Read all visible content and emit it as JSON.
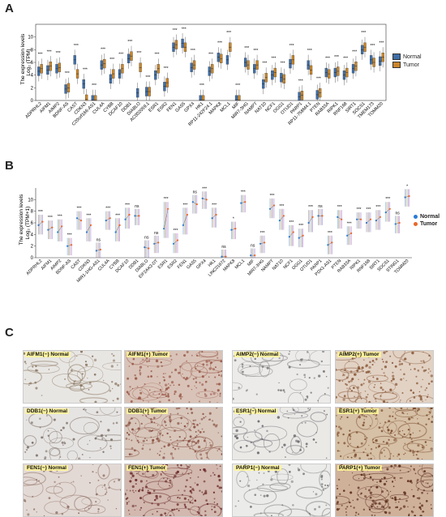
{
  "panels": {
    "a_label": "A",
    "b_label": "B",
    "c_label": "C"
  },
  "panel_a": {
    "ylabel_line1": "The expression levels",
    "ylabel_line2": "Log₂ (TPM)",
    "legend": [
      {
        "name": "Normal",
        "color": "#3f6fa8"
      },
      {
        "name": "Tumor",
        "color": "#c9862a"
      }
    ]
  },
  "panel_b": {
    "ylabel_line1": "The expression levels",
    "ylabel_line2": "Log₂ (TPM+1)",
    "legend": [
      {
        "name": "Normal",
        "color": "#2a7bd4"
      },
      {
        "name": "Tumor",
        "color": "#e8682a"
      }
    ]
  },
  "chart_data": [
    {
      "type": "box",
      "panel": "A",
      "ylim": [
        0,
        12
      ],
      "yticks": [
        0,
        2,
        4,
        6,
        8,
        10
      ],
      "categories": [
        "ADPRHL2",
        "AIFM1",
        "AIMP2",
        "BDNF-AS",
        "CAST",
        "CDKN3",
        "C20orf166-AS1",
        "CUL4A",
        "CYBB",
        "DCAF10",
        "DDB1",
        "DIABLO",
        "AC002059.1",
        "ESR1",
        "ESR2",
        "FEN1",
        "GAS5",
        "GPX4",
        "HK1",
        "RP11-242F24.1",
        "MAPK8",
        "MCL1",
        "MIF",
        "MIR7-3HG",
        "NAMPT",
        "NAT10",
        "NCF1",
        "OGG1",
        "OTUD1",
        "PARP1",
        "RP11-758M4.1",
        "PTEN",
        "RAB33A",
        "RIPK1",
        "RNF168",
        "SIRT1",
        "SOCS1",
        "TMEM173",
        "TOMM20"
      ],
      "series": [
        {
          "name": "Normal",
          "medians": [
            4.6,
            4.8,
            5.0,
            1.8,
            6.4,
            2.6,
            0.1,
            5.6,
            3.4,
            4.2,
            6.6,
            1.2,
            1.4,
            4.0,
            2.2,
            8.4,
            9.0,
            5.2,
            0.1,
            4.6,
            6.8,
            6.4,
            0.1,
            6.0,
            5.0,
            2.6,
            4.0,
            3.6,
            5.8,
            0.6,
            5.6,
            0.9,
            4.4,
            4.4,
            4.0,
            5.0,
            8.0,
            6.4,
            6.2
          ]
        },
        {
          "name": "Tumor",
          "medians": [
            5.0,
            5.4,
            5.2,
            2.0,
            4.2,
            0.2,
            0.1,
            5.8,
            4.2,
            5.0,
            7.0,
            5.2,
            1.4,
            5.0,
            2.8,
            8.8,
            8.4,
            5.6,
            0.1,
            5.0,
            6.6,
            8.4,
            0.1,
            5.6,
            5.6,
            3.6,
            4.4,
            3.4,
            6.4,
            0.8,
            4.8,
            1.2,
            4.2,
            4.6,
            4.4,
            5.4,
            8.4,
            6.0,
            6.8
          ]
        }
      ],
      "significance": [
        "***",
        "***",
        "***",
        "***",
        "***",
        "***",
        "***",
        "***",
        "***",
        "***",
        "***",
        "***",
        "***",
        "***",
        "***",
        "***",
        "***",
        "***",
        "***",
        "***",
        "***",
        "***",
        "***",
        "***",
        "***",
        "***",
        "***",
        "***",
        "***",
        "***",
        "***",
        "***",
        "***",
        "***",
        "***",
        "***",
        "***",
        "***",
        "***"
      ]
    },
    {
      "type": "paired",
      "panel": "B",
      "ylim": [
        0,
        12
      ],
      "yticks": [
        0,
        2,
        4,
        6,
        8,
        10
      ],
      "categories": [
        "ADPRHL2",
        "AIFM1",
        "AIMP2",
        "BDNF-AS",
        "CAST",
        "CDKN3",
        "MIR1-1HG-AS1",
        "CUL4A",
        "CYBB",
        "DCAF10",
        "DDB1",
        "DIABLO",
        "EIF2AK3-DT",
        "ESR1",
        "ESR2",
        "FEN1",
        "GAS5",
        "GPX4",
        "HK1",
        "LINC01672",
        "MAPK8",
        "MCL1",
        "MIF",
        "MIR7-3HG",
        "NAMPT",
        "NAT10",
        "NCF1",
        "OGG1",
        "OTUD1",
        "PARP1",
        "PDX1-AS1",
        "PTEN",
        "RAB33A",
        "RIPK1",
        "RNF168",
        "SIRT1",
        "SOCS1",
        "STING1",
        "TOMM20"
      ],
      "series": [
        {
          "name": "Normal",
          "values": [
            5.6,
            4.8,
            4.4,
            2.0,
            6.8,
            4.4,
            1.2,
            6.4,
            4.4,
            6.6,
            7.2,
            1.8,
            2.4,
            5.0,
            2.4,
            5.6,
            9.6,
            10.2,
            6.8,
            0.2,
            4.8,
            9.4,
            0.4,
            2.4,
            8.4,
            6.4,
            3.6,
            3.4,
            6.0,
            7.2,
            2.2,
            7.0,
            3.8,
            6.6,
            6.0,
            6.4,
            7.8,
            5.8,
            10.4
          ]
        },
        {
          "name": "Tumor",
          "values": [
            6.2,
            5.2,
            5.4,
            2.2,
            6.4,
            5.6,
            1.4,
            6.8,
            5.6,
            7.4,
            7.2,
            1.6,
            2.6,
            8.4,
            3.0,
            7.4,
            9.2,
            10.0,
            7.4,
            0.2,
            5.0,
            9.6,
            0.4,
            2.6,
            9.0,
            7.2,
            4.4,
            3.8,
            7.0,
            7.2,
            2.6,
            6.6,
            4.2,
            6.6,
            6.6,
            7.0,
            8.4,
            6.0,
            10.6
          ]
        }
      ],
      "significance": [
        "***",
        "***",
        "***",
        "***",
        "***",
        "***",
        "ns",
        "***",
        "***",
        "***",
        "ns",
        "ns",
        "ns",
        "***",
        "***",
        "***",
        "ns",
        "***",
        "***",
        "ns",
        "*",
        "***",
        "ns",
        "***",
        "***",
        "***",
        "***",
        "***",
        "***",
        "ns",
        "***",
        "***",
        "***",
        "***",
        "***",
        "***",
        "***",
        "ns",
        "*"
      ]
    }
  ],
  "panel_c": {
    "tiles": [
      {
        "label": "AIFM1(−) Normal",
        "bg": "#e8e6e3",
        "stain": "#8a7560"
      },
      {
        "label": "AIFM1(+) Tumor",
        "bg": "#d9c3b8",
        "stain": "#9a5a4a"
      },
      {
        "label": "AIMP2(−) Normal",
        "bg": "#ecebe9",
        "stain": "#7a7a7a"
      },
      {
        "label": "AIMP2(+) Tumor",
        "bg": "#e2d2c4",
        "stain": "#8a5a3a"
      },
      {
        "label": "DDB1(−) Normal",
        "bg": "#e6e4e2",
        "stain": "#7a6e66"
      },
      {
        "label": "DDB1(+) Tumor",
        "bg": "#d8c6bb",
        "stain": "#8a5040"
      },
      {
        "label": "ESR1(−) Normal",
        "bg": "#eae9e6",
        "stain": "#6e6a70"
      },
      {
        "label": "ESR1(+) Tumor",
        "bg": "#d6c0a6",
        "stain": "#7a4a2a"
      },
      {
        "label": "FEN1(−) Normal",
        "bg": "#e3d9d4",
        "stain": "#8a6a60"
      },
      {
        "label": "FEN1(+) Tumor",
        "bg": "#d2b8ae",
        "stain": "#6a2a2a"
      },
      {
        "label": "PARP1(−) Normal",
        "bg": "#ebebe9",
        "stain": "#7a7a7a"
      },
      {
        "label": "PARP1(+) Tumor",
        "bg": "#cfb19a",
        "stain": "#5a2a1a"
      }
    ]
  }
}
